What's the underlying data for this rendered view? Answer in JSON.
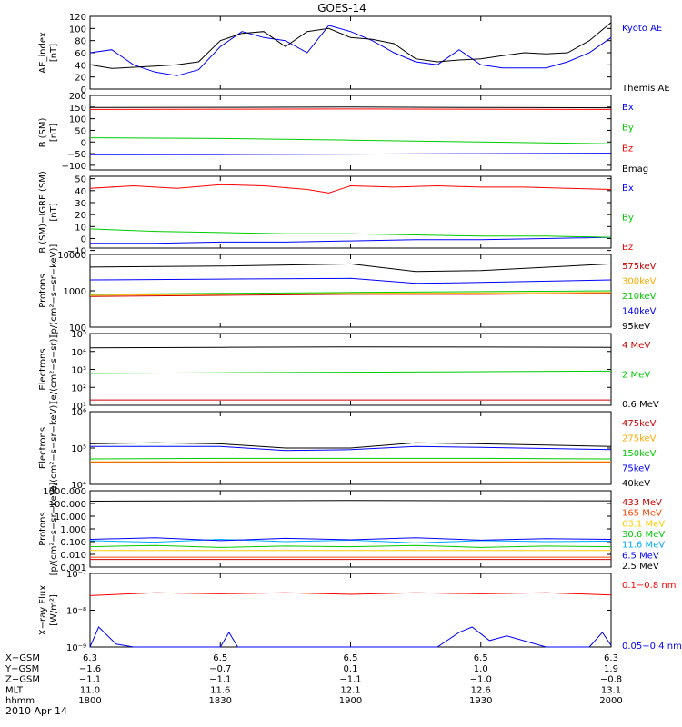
{
  "title": "GOES-14",
  "date": "2010 Apr 14",
  "chart_data": [
    {
      "type": "line",
      "ylabel": [
        "AE_index",
        "[nT]"
      ],
      "ylim": [
        0,
        120
      ],
      "yticks": [
        "0",
        "20",
        "40",
        "60",
        "80",
        "100",
        "120"
      ],
      "yvals": [
        0,
        20,
        40,
        60,
        80,
        100,
        120
      ],
      "series": [
        {
          "name": "Kyoto AE",
          "color": "#0000ff",
          "x": [
            1800,
            1805,
            1810,
            1815,
            1820,
            1825,
            1830,
            1835,
            1840,
            1845,
            1850,
            1855,
            1900,
            1905,
            1910,
            1915,
            1920,
            1925,
            1930,
            1935,
            1940,
            1945,
            1950,
            1955,
            2000
          ],
          "y": [
            60,
            65,
            40,
            28,
            22,
            32,
            70,
            95,
            85,
            80,
            60,
            105,
            95,
            80,
            60,
            45,
            40,
            65,
            40,
            35,
            35,
            35,
            45,
            60,
            85
          ]
        },
        {
          "name": "Themis AE",
          "color": "#000000",
          "x": [
            1800,
            1805,
            1810,
            1815,
            1820,
            1825,
            1830,
            1835,
            1840,
            1845,
            1850,
            1855,
            1900,
            1905,
            1910,
            1915,
            1920,
            1925,
            1930,
            1935,
            1940,
            1945,
            1950,
            1955,
            2000
          ],
          "y": [
            40,
            34,
            36,
            38,
            40,
            45,
            80,
            92,
            95,
            70,
            95,
            100,
            85,
            82,
            75,
            50,
            45,
            48,
            50,
            55,
            60,
            58,
            60,
            80,
            110
          ]
        }
      ]
    },
    {
      "type": "line",
      "ylabel": [
        "B (SM)",
        "[nT]"
      ],
      "ylim": [
        -120,
        200
      ],
      "yticks": [
        "200",
        "150",
        "100",
        "50",
        "0",
        "−50",
        "−100"
      ],
      "yvals": [
        200,
        150,
        100,
        50,
        0,
        -50,
        -100
      ],
      "series": [
        {
          "name": "Bx",
          "color": "#0000ff",
          "x": [
            1800,
            1830,
            1900,
            1930,
            2000
          ],
          "y": [
            -55,
            -54,
            -52,
            -50,
            -48
          ]
        },
        {
          "name": "By",
          "color": "#00cc00",
          "x": [
            1800,
            1830,
            1900,
            1930,
            2000
          ],
          "y": [
            18,
            15,
            8,
            0,
            -8
          ]
        },
        {
          "name": "Bz",
          "color": "#ff0000",
          "x": [
            1800,
            1830,
            1900,
            1930,
            2000
          ],
          "y": [
            140,
            141,
            142,
            141,
            140
          ]
        },
        {
          "name": "Bmag",
          "color": "#000000",
          "x": [
            1800,
            1830,
            1900,
            1930,
            2000
          ],
          "y": [
            148,
            149,
            150,
            148,
            147
          ]
        }
      ]
    },
    {
      "type": "line",
      "ylabel": [
        "B (SM)−IGRF (SM)",
        "[nT]"
      ],
      "ylim": [
        -8,
        52
      ],
      "yticks": [
        "50",
        "40",
        "30",
        "20",
        "10",
        "0",
        "−10"
      ],
      "yvals": [
        50,
        40,
        30,
        20,
        10,
        0,
        -10
      ],
      "series": [
        {
          "name": "Bx",
          "color": "#0000ff",
          "x": [
            1800,
            1815,
            1830,
            1845,
            1900,
            1915,
            1930,
            1945,
            2000
          ],
          "y": [
            -4,
            -4,
            -3,
            -3,
            -2,
            -1,
            -1,
            0,
            1
          ]
        },
        {
          "name": "By",
          "color": "#00cc00",
          "x": [
            1800,
            1815,
            1830,
            1845,
            1900,
            1915,
            1930,
            1945,
            2000
          ],
          "y": [
            8,
            6,
            5,
            4,
            4,
            3,
            2,
            2,
            1
          ]
        },
        {
          "name": "Bz",
          "color": "#ff0000",
          "x": [
            1800,
            1810,
            1820,
            1830,
            1840,
            1850,
            1855,
            1900,
            1910,
            1920,
            1930,
            1940,
            1950,
            2000
          ],
          "y": [
            42,
            44,
            42,
            45,
            44,
            41,
            38,
            44,
            43,
            44,
            43,
            43,
            42,
            41
          ]
        }
      ]
    },
    {
      "type": "line",
      "yscale": "log",
      "ylabel": [
        "Protons",
        "[p/(cm²−s−sr−keV)]"
      ],
      "ylim": [
        100,
        10000
      ],
      "yticks": [
        "10000",
        "1000",
        "100"
      ],
      "yvals": [
        10000,
        1000,
        100
      ],
      "series": [
        {
          "name": "575keV",
          "color": "#cc0000",
          "x": [
            1800,
            1830,
            1900,
            1930,
            2000
          ],
          "y": [
            700,
            750,
            800,
            800,
            850
          ]
        },
        {
          "name": "300keV",
          "color": "#ffaa00",
          "x": [
            1800,
            1830,
            1900,
            1930,
            2000
          ],
          "y": [
            750,
            800,
            850,
            870,
            900
          ]
        },
        {
          "name": "210keV",
          "color": "#00cc00",
          "x": [
            1800,
            1830,
            1900,
            1930,
            2000
          ],
          "y": [
            800,
            850,
            900,
            950,
            1000
          ]
        },
        {
          "name": "140keV",
          "color": "#0000ff",
          "x": [
            1800,
            1830,
            1900,
            1915,
            1930,
            2000
          ],
          "y": [
            2000,
            2100,
            2200,
            1600,
            1700,
            2000
          ]
        },
        {
          "name": "95keV",
          "color": "#000000",
          "x": [
            1800,
            1830,
            1900,
            1915,
            1930,
            2000
          ],
          "y": [
            4500,
            4800,
            5500,
            3400,
            3600,
            5500
          ]
        }
      ]
    },
    {
      "type": "line",
      "yscale": "log",
      "ylabel": [
        "Electrons",
        "[e/(cm²−s−sr)]"
      ],
      "ylim": [
        10,
        100000
      ],
      "yticks": [
        "10⁵",
        "10⁴",
        "10³",
        "10²",
        "10¹"
      ],
      "yvals": [
        100000,
        10000,
        1000,
        100,
        10
      ],
      "series": [
        {
          "name": "4 MeV",
          "color": "#cc0000",
          "x": [
            1800,
            1830,
            1900,
            1930,
            2000
          ],
          "y": [
            20,
            20,
            20,
            20,
            20
          ]
        },
        {
          "name": "2 MeV",
          "color": "#00cc00",
          "x": [
            1800,
            1830,
            1900,
            1930,
            2000
          ],
          "y": [
            600,
            650,
            700,
            750,
            800
          ]
        },
        {
          "name": "0.6 MeV",
          "color": "#000000",
          "x": [
            1800,
            1830,
            1900,
            1930,
            2000
          ],
          "y": [
            16000,
            17000,
            18000,
            17500,
            17000
          ]
        }
      ]
    },
    {
      "type": "line",
      "yscale": "log",
      "ylabel": [
        "Electrons",
        "[e/(cm²−s−sr−keV)]"
      ],
      "ylim": [
        10000,
        1000000
      ],
      "yticks": [
        "10⁶",
        "10⁵",
        "10⁴"
      ],
      "yvals": [
        1000000,
        100000,
        10000
      ],
      "series": [
        {
          "name": "475keV",
          "color": "#cc0000",
          "x": [
            1800,
            2000
          ],
          "y": [
            40000,
            40000
          ]
        },
        {
          "name": "275keV",
          "color": "#ffaa00",
          "x": [
            1800,
            2000
          ],
          "y": [
            42000,
            42000
          ]
        },
        {
          "name": "150keV",
          "color": "#00cc00",
          "x": [
            1800,
            1830,
            1900,
            1930,
            2000
          ],
          "y": [
            50000,
            52000,
            52000,
            52000,
            50000
          ]
        },
        {
          "name": "75keV",
          "color": "#0000ff",
          "x": [
            1800,
            1830,
            1845,
            1900,
            1915,
            1930,
            2000
          ],
          "y": [
            110000,
            110000,
            85000,
            90000,
            110000,
            105000,
            90000
          ]
        },
        {
          "name": "40keV",
          "color": "#000000",
          "x": [
            1800,
            1815,
            1830,
            1845,
            1900,
            1915,
            1930,
            1945,
            2000
          ],
          "y": [
            130000,
            140000,
            130000,
            100000,
            100000,
            140000,
            130000,
            120000,
            110000
          ]
        }
      ]
    },
    {
      "type": "line",
      "yscale": "log",
      "ylabel": [
        "Protons",
        "[p/(cm²−s−sr−keV)]"
      ],
      "ylim": [
        0.001,
        1000
      ],
      "yticks": [
        "1000.000",
        "100.000",
        "10.000",
        "1.000",
        "0.100",
        "0.010",
        "0.001"
      ],
      "yvals": [
        1000,
        100,
        10,
        1,
        0.1,
        0.01,
        0.001
      ],
      "series": [
        {
          "name": "433 MeV",
          "color": "#cc0000",
          "x": [
            1800,
            2000
          ],
          "y": [
            0.004,
            0.004
          ]
        },
        {
          "name": "165 MeV",
          "color": "#ff4400",
          "x": [
            1800,
            2000
          ],
          "y": [
            0.006,
            0.006
          ]
        },
        {
          "name": "63.1 MeV",
          "color": "#ffcc00",
          "x": [
            1800,
            2000
          ],
          "y": [
            0.02,
            0.02
          ]
        },
        {
          "name": "30.6 MeV",
          "color": "#00cc00",
          "x": [
            1800,
            1815,
            1830,
            1845,
            1900,
            1915,
            1930,
            1945,
            2000
          ],
          "y": [
            0.04,
            0.05,
            0.035,
            0.045,
            0.04,
            0.05,
            0.035,
            0.045,
            0.04
          ]
        },
        {
          "name": "11.6 MeV",
          "color": "#00aaff",
          "x": [
            1800,
            1815,
            1830,
            1845,
            1900,
            1915,
            1930,
            1945,
            2000
          ],
          "y": [
            0.12,
            0.09,
            0.15,
            0.1,
            0.13,
            0.08,
            0.12,
            0.1,
            0.11
          ]
        },
        {
          "name": "6.5 MeV",
          "color": "#0000ff",
          "x": [
            1800,
            1815,
            1830,
            1845,
            1900,
            1915,
            1930,
            1945,
            2000
          ],
          "y": [
            0.15,
            0.2,
            0.12,
            0.18,
            0.14,
            0.2,
            0.13,
            0.17,
            0.15
          ]
        },
        {
          "name": "2.5 MeV",
          "color": "#000000",
          "x": [
            1800,
            1830,
            1900,
            1930,
            2000
          ],
          "y": [
            150,
            160,
            170,
            165,
            160
          ]
        }
      ]
    },
    {
      "type": "line",
      "yscale": "log",
      "ylabel": [
        "X−ray Flux",
        "[W/m²]"
      ],
      "ylim": [
        1e-09,
        1e-07
      ],
      "yticks": [
        "10⁻⁷",
        "10⁻⁸",
        "10⁻⁹"
      ],
      "yvals": [
        1e-07,
        1e-08,
        1e-09
      ],
      "series": [
        {
          "name": "0.1−0.8 nm",
          "color": "#ff0000",
          "x": [
            1800,
            1815,
            1830,
            1845,
            1900,
            1915,
            1930,
            1945,
            2000
          ],
          "y": [
            2.5e-08,
            3e-08,
            2.8e-08,
            3e-08,
            2.7e-08,
            3e-08,
            2.8e-08,
            3e-08,
            2.6e-08
          ]
        },
        {
          "name": "0.05−0.4 nm",
          "color": "#0000ff",
          "x": [
            1800,
            1802,
            1806,
            1810,
            1830,
            1832,
            1834,
            1900,
            1920,
            1925,
            1928,
            1932,
            1936,
            1945,
            1955,
            1958,
            2000
          ],
          "y": [
            1e-09,
            3.5e-09,
            1.2e-09,
            1e-09,
            1e-09,
            2.5e-09,
            1e-09,
            1e-09,
            1e-09,
            2.5e-09,
            3.5e-09,
            1.5e-09,
            2e-09,
            1e-09,
            1e-09,
            2.5e-09,
            1.1e-09
          ]
        }
      ]
    }
  ],
  "x_axis": {
    "ticks": [
      1800,
      1830,
      1900,
      1930,
      2000
    ],
    "rows": [
      {
        "label": "X−GSM",
        "values": [
          "6.3",
          "6.5",
          "6.5",
          "6.5",
          "6.3"
        ]
      },
      {
        "label": "Y−GSM",
        "values": [
          "−1.6",
          "−0.7",
          "0.1",
          "1.0",
          "1.9"
        ]
      },
      {
        "label": "Z−GSM",
        "values": [
          "−1.1",
          "−1.1",
          "−1.1",
          "−1.0",
          "−0.8"
        ]
      },
      {
        "label": "MLT",
        "values": [
          "11.0",
          "11.6",
          "12.1",
          "12.6",
          "13.1"
        ]
      },
      {
        "label": "hhmm",
        "values": [
          "1800",
          "1830",
          "1900",
          "1930",
          "2000"
        ]
      }
    ]
  }
}
